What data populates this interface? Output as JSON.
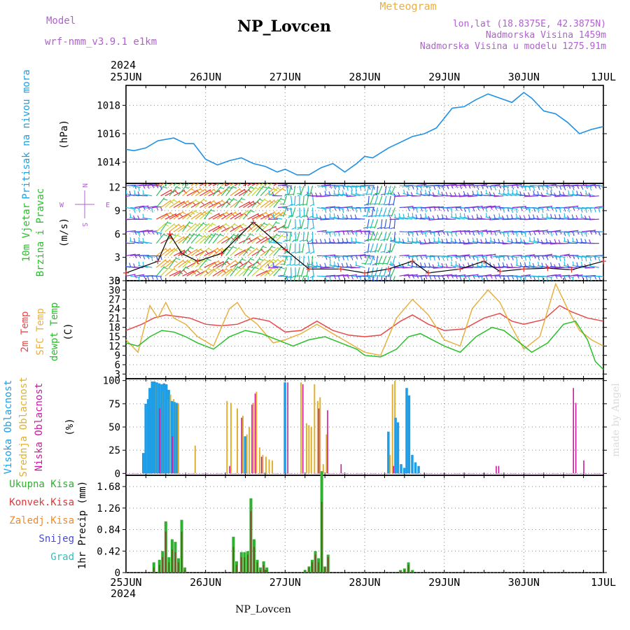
{
  "header": {
    "model_label": "Model",
    "model_name": "wrf-nmm_v3.9.1  e1km",
    "station": "NP_Lovcen",
    "meteogram_label": "Meteogram",
    "lonlat": "lon,lat (18.8375E, 42.3875N)",
    "altitude": "Nadmorska Visina 1459m",
    "model_altitude": "Nadmorska Visina u modelu 1275.91m",
    "year_top": "2024",
    "year_bottom": "2024",
    "footer_station": "NP_Lovcen",
    "credit": "made by Angel"
  },
  "colors": {
    "pressure": "#1e90e6",
    "temp2m": "#e84848",
    "sfc_temp": "#e8b040",
    "dewpt": "#28c028",
    "high_cloud": "#1e9ee6",
    "mid_cloud": "#e0b030",
    "low_cloud": "#cc1aa0",
    "precip_total": "#30b030",
    "precip_conv": "#e03838",
    "precip_frozen": "#f08a2a",
    "snow": "#4848e0",
    "graupel": "#30c0c0",
    "panel_label_pressure": "#1ea0e0",
    "panel_label_wind": "#28c028",
    "compass": "#b060d0"
  },
  "chart_data": {
    "type": "line",
    "x_ticks": [
      "25JUN",
      "26JUN",
      "27JUN",
      "28JUN",
      "29JUN",
      "30JUN",
      "1JUL"
    ],
    "panels": [
      {
        "id": "pressure",
        "type": "line",
        "ylabel_left": "Pritisak na nivou mora",
        "ylabel_unit": "(hPa)",
        "ylim": [
          1012.5,
          1019.4
        ],
        "yticks": [
          1014,
          1016,
          1018
        ],
        "ytick_labels": [
          "1014",
          "1016",
          "1018"
        ],
        "series": [
          {
            "x": [
              0,
              0.1,
              0.25,
              0.4,
              0.6,
              0.75,
              0.85,
              1.0,
              1.15,
              1.3,
              1.45,
              1.6,
              1.75,
              1.9,
              2.0,
              2.15,
              2.3,
              2.45,
              2.6,
              2.75,
              2.9,
              3.0,
              3.1,
              3.3,
              3.45,
              3.6,
              3.75,
              3.9,
              4.0,
              4.1,
              4.25,
              4.4,
              4.55,
              4.7,
              4.85,
              5.0,
              5.1,
              5.25,
              5.4,
              5.55,
              5.7,
              5.85,
              6.0
            ],
            "y": [
              1014.9,
              1014.8,
              1015.0,
              1015.5,
              1015.7,
              1015.3,
              1015.3,
              1014.2,
              1013.8,
              1014.1,
              1014.3,
              1013.9,
              1013.7,
              1013.3,
              1013.5,
              1013.1,
              1013.1,
              1013.6,
              1013.9,
              1013.3,
              1013.9,
              1014.4,
              1014.3,
              1015.0,
              1015.4,
              1015.8,
              1016.0,
              1016.4,
              1017.1,
              1017.8,
              1017.9,
              1018.4,
              1018.8,
              1018.5,
              1018.2,
              1018.9,
              1018.5,
              1017.6,
              1017.4,
              1016.8,
              1016.0,
              1016.3,
              1016.5
            ]
          }
        ]
      },
      {
        "id": "wind",
        "type": "barb",
        "ylabel_left": "10m Vjetar",
        "ylabel_left2": "Brzina i Pravac",
        "ylabel_unit": "(m/s)",
        "compass": {
          "n": "N",
          "s": "S",
          "e": "E",
          "w": "W"
        },
        "ylim": [
          0,
          12.5
        ],
        "yticks": [
          0,
          3,
          6,
          9,
          12
        ],
        "ytick_labels": [
          "0",
          "3",
          "6",
          "9",
          "12"
        ],
        "speed_trace": {
          "x": [
            0,
            0.4,
            0.55,
            0.7,
            0.9,
            1.2,
            1.4,
            1.6,
            2.0,
            2.3,
            2.7,
            3.0,
            3.3,
            3.6,
            3.8,
            4.2,
            4.5,
            4.7,
            5.0,
            5.3,
            5.6,
            6.0
          ],
          "y": [
            1,
            2.5,
            6,
            3.5,
            2.5,
            3.5,
            5.5,
            7.5,
            4,
            1.5,
            1.5,
            1,
            1.5,
            2.5,
            1,
            1.5,
            2.5,
            1.2,
            1.5,
            1.6,
            1.4,
            2.5
          ]
        }
      },
      {
        "id": "temperature",
        "type": "line",
        "ylabel_left": "2m Temp",
        "ylabel_left2": "SFC Temp",
        "ylabel_left3": "dewpt Temp",
        "ylabel_unit": "(C)",
        "ylim": [
          1.5,
          33
        ],
        "yticks": [
          3,
          6,
          9,
          12,
          15,
          18,
          21,
          24,
          27,
          30,
          33
        ],
        "ytick_labels": [
          "3",
          "6",
          "9",
          "12",
          "15",
          "18",
          "21",
          "24",
          "27",
          "30",
          "33"
        ],
        "series": [
          {
            "key": "temp2m",
            "x": [
              0,
              0.2,
              0.35,
              0.5,
              0.65,
              0.8,
              1.0,
              1.2,
              1.4,
              1.6,
              1.8,
              2.0,
              2.2,
              2.4,
              2.6,
              2.8,
              3.0,
              3.2,
              3.45,
              3.6,
              3.8,
              4.0,
              4.25,
              4.5,
              4.7,
              4.85,
              5.0,
              5.25,
              5.45,
              5.6,
              5.8,
              6.0
            ],
            "y": [
              17,
              19,
              21,
              22,
              21.5,
              21,
              19,
              18.5,
              19,
              21,
              20,
              16.5,
              17,
              20,
              17,
              15.5,
              15,
              15.5,
              20,
              22,
              19,
              17,
              17.5,
              21,
              22.5,
              20,
              19,
              20.5,
              25,
              23,
              21,
              20
            ]
          },
          {
            "key": "sfc_temp",
            "x": [
              0,
              0.15,
              0.3,
              0.4,
              0.5,
              0.6,
              0.75,
              0.9,
              1.1,
              1.3,
              1.4,
              1.5,
              1.65,
              1.85,
              2.0,
              2.2,
              2.4,
              2.6,
              2.8,
              3.0,
              3.2,
              3.4,
              3.6,
              3.8,
              4.0,
              4.2,
              4.35,
              4.55,
              4.7,
              4.85,
              5.0,
              5.2,
              5.4,
              5.55,
              5.7,
              5.85,
              6.0
            ],
            "y": [
              14,
              10,
              25,
              21,
              26,
              21,
              19,
              15,
              12,
              24,
              26,
              22,
              19,
              13,
              14,
              16,
              19,
              16,
              13,
              10,
              9,
              21,
              27,
              22,
              14,
              12,
              24,
              30,
              26,
              18,
              11,
              15,
              32,
              24,
              17,
              14,
              12
            ]
          },
          {
            "key": "dewpt",
            "x": [
              0,
              0.15,
              0.3,
              0.45,
              0.6,
              0.75,
              0.9,
              1.1,
              1.3,
              1.5,
              1.7,
              1.9,
              2.1,
              2.3,
              2.5,
              2.7,
              2.9,
              3.0,
              3.2,
              3.4,
              3.55,
              3.7,
              3.85,
              4.0,
              4.2,
              4.4,
              4.6,
              4.75,
              4.9,
              5.1,
              5.3,
              5.5,
              5.65,
              5.8,
              5.9,
              6.0
            ],
            "y": [
              13,
              12,
              15,
              17,
              16.5,
              15,
              13,
              11,
              15,
              17,
              16,
              14,
              12,
              14,
              15,
              13,
              11,
              9,
              8.5,
              11,
              15,
              16,
              14,
              12,
              10,
              15,
              18,
              17,
              14,
              10,
              13,
              19,
              20,
              14,
              7,
              4.5
            ]
          }
        ]
      },
      {
        "id": "cloud",
        "type": "bar",
        "ylabel_left": "Visoka Oblacnost",
        "ylabel_left2": "Srednja Oblacnost",
        "ylabel_left3": "Niska Oblacnost",
        "ylabel_unit": "(%)",
        "ylim": [
          -2,
          102
        ],
        "yticks": [
          0,
          25,
          50,
          75,
          100
        ],
        "ytick_labels": [
          "0",
          "25",
          "50",
          "75",
          "100"
        ],
        "bars": [
          {
            "x": 0.22,
            "high": 22
          },
          {
            "x": 0.25,
            "high": 75
          },
          {
            "x": 0.28,
            "high": 80
          },
          {
            "x": 0.3,
            "high": 92
          },
          {
            "x": 0.33,
            "high": 99
          },
          {
            "x": 0.36,
            "high": 99,
            "mid": 95
          },
          {
            "x": 0.39,
            "high": 98,
            "mid": 90
          },
          {
            "x": 0.42,
            "high": 97,
            "mid": 85,
            "low": 70
          },
          {
            "x": 0.45,
            "high": 96,
            "mid": 88
          },
          {
            "x": 0.48,
            "high": 97,
            "mid": 90
          },
          {
            "x": 0.51,
            "high": 96,
            "mid": 80
          },
          {
            "x": 0.54,
            "high": 90,
            "mid": 85
          },
          {
            "x": 0.58,
            "high": 78,
            "mid": 80,
            "low": 40
          },
          {
            "x": 0.61,
            "high": 77,
            "mid": 76
          },
          {
            "x": 0.64,
            "high": 76,
            "mid": 75
          },
          {
            "x": 0.85,
            "mid": 30
          },
          {
            "x": 1.25,
            "mid": 78
          },
          {
            "x": 1.3,
            "mid": 76,
            "low": 8
          },
          {
            "x": 1.38,
            "mid": 70
          },
          {
            "x": 1.45,
            "mid": 62,
            "low": 60
          },
          {
            "x": 1.5,
            "mid": 42,
            "high": 40
          },
          {
            "x": 1.53,
            "mid": 50
          },
          {
            "x": 1.58,
            "mid": 76,
            "low": 74
          },
          {
            "x": 1.62,
            "mid": 88,
            "low": 86
          },
          {
            "x": 1.66,
            "mid": 28
          },
          {
            "x": 1.7,
            "mid": 20,
            "low": 18
          },
          {
            "x": 1.74,
            "mid": 18
          },
          {
            "x": 1.78,
            "mid": 15
          },
          {
            "x": 1.82,
            "mid": 14
          },
          {
            "x": 2.0,
            "high": 98
          },
          {
            "x": 2.03,
            "low": 98
          },
          {
            "x": 2.18,
            "mid": 98
          },
          {
            "x": 2.22,
            "low": 96
          },
          {
            "x": 2.25,
            "mid": 54
          },
          {
            "x": 2.28,
            "mid": 52
          },
          {
            "x": 2.31,
            "mid": 50
          },
          {
            "x": 2.35,
            "mid": 96
          },
          {
            "x": 2.39,
            "mid": 78
          },
          {
            "x": 2.42,
            "mid": 82,
            "low": 70
          },
          {
            "x": 2.46,
            "mid": 10
          },
          {
            "x": 2.5,
            "mid": 42
          },
          {
            "x": 2.53,
            "low": 68
          },
          {
            "x": 2.7,
            "low": 10
          },
          {
            "x": 3.3,
            "mid": 20,
            "high": 45
          },
          {
            "x": 3.33,
            "mid": 96
          },
          {
            "x": 3.36,
            "mid": 100,
            "low": 8
          },
          {
            "x": 3.39,
            "high": 60
          },
          {
            "x": 3.42,
            "high": 55
          },
          {
            "x": 3.46,
            "high": 10
          },
          {
            "x": 3.5,
            "high": 6
          },
          {
            "x": 3.53,
            "high": 92
          },
          {
            "x": 3.56,
            "high": 84
          },
          {
            "x": 3.6,
            "high": 20
          },
          {
            "x": 3.64,
            "high": 12
          },
          {
            "x": 3.68,
            "high": 8
          },
          {
            "x": 4.65,
            "low": 8
          },
          {
            "x": 4.68,
            "low": 8
          },
          {
            "x": 5.62,
            "low": 92
          },
          {
            "x": 5.65,
            "low": 76
          },
          {
            "x": 5.75,
            "low": 14
          }
        ]
      },
      {
        "id": "precip",
        "type": "bar",
        "ylabel_left": "Ukupna Kisa",
        "ylabel_left2": "Konvek.Kisa",
        "ylabel_left3": "Zaledj.Kisa",
        "ylabel_left4": "Snijeg",
        "ylabel_left5": "Grad",
        "ylabel_unit": "1hr Precip (mm)",
        "ylim": [
          0,
          1.9
        ],
        "yticks": [
          0,
          0.42,
          0.84,
          1.26,
          1.68
        ],
        "ytick_labels": [
          "0",
          "0.42",
          "0.84",
          "1.26",
          "1.68"
        ],
        "bars": [
          {
            "x": 0.35,
            "total": 0.2,
            "conv": 0.1
          },
          {
            "x": 0.42,
            "total": 0.25,
            "conv": 0.15
          },
          {
            "x": 0.46,
            "total": 0.42,
            "conv": 0.3
          },
          {
            "x": 0.5,
            "total": 1.0,
            "conv": 0.8
          },
          {
            "x": 0.54,
            "total": 0.3,
            "conv": 0.2
          },
          {
            "x": 0.58,
            "total": 0.65,
            "conv": 0.45
          },
          {
            "x": 0.62,
            "total": 0.6,
            "conv": 0.4
          },
          {
            "x": 0.66,
            "total": 0.28,
            "conv": 0.2
          },
          {
            "x": 0.7,
            "total": 1.03,
            "conv": 0.8
          },
          {
            "x": 0.74,
            "total": 0.1,
            "conv": 0.05
          },
          {
            "x": 1.35,
            "total": 0.7,
            "conv": 0.5
          },
          {
            "x": 1.39,
            "total": 0.22,
            "conv": 0.15
          },
          {
            "x": 1.45,
            "total": 0.4,
            "conv": 0.3
          },
          {
            "x": 1.49,
            "total": 0.4,
            "conv": 0.3
          },
          {
            "x": 1.53,
            "total": 0.42,
            "conv": 0.35
          },
          {
            "x": 1.57,
            "total": 1.45,
            "conv": 1.2
          },
          {
            "x": 1.61,
            "total": 0.65,
            "conv": 0.5
          },
          {
            "x": 1.65,
            "total": 0.25,
            "conv": 0.2
          },
          {
            "x": 1.69,
            "total": 0.1,
            "conv": 0.05
          },
          {
            "x": 1.73,
            "total": 0.22,
            "conv": 0.15
          },
          {
            "x": 1.77,
            "total": 0.1,
            "conv": 0.05
          },
          {
            "x": 2.25,
            "total": 0.05,
            "conv": 0.03
          },
          {
            "x": 2.3,
            "total": 0.12,
            "conv": 0.1
          },
          {
            "x": 2.34,
            "total": 0.25,
            "conv": 0.2
          },
          {
            "x": 2.38,
            "total": 0.42,
            "conv": 0.35
          },
          {
            "x": 2.42,
            "total": 0.28,
            "conv": 0.2
          },
          {
            "x": 2.46,
            "total": 1.98,
            "conv": 1.38
          },
          {
            "x": 2.5,
            "total": 0.12,
            "conv": 0.1
          },
          {
            "x": 2.54,
            "total": 0.35,
            "conv": 0.3
          },
          {
            "x": 3.45,
            "total": 0.05,
            "conv": 0.03
          },
          {
            "x": 3.5,
            "total": 0.08,
            "conv": 0.05
          },
          {
            "x": 3.55,
            "total": 0.2,
            "conv": 0.15
          },
          {
            "x": 3.6,
            "total": 0.05,
            "conv": 0.02
          }
        ]
      }
    ]
  }
}
